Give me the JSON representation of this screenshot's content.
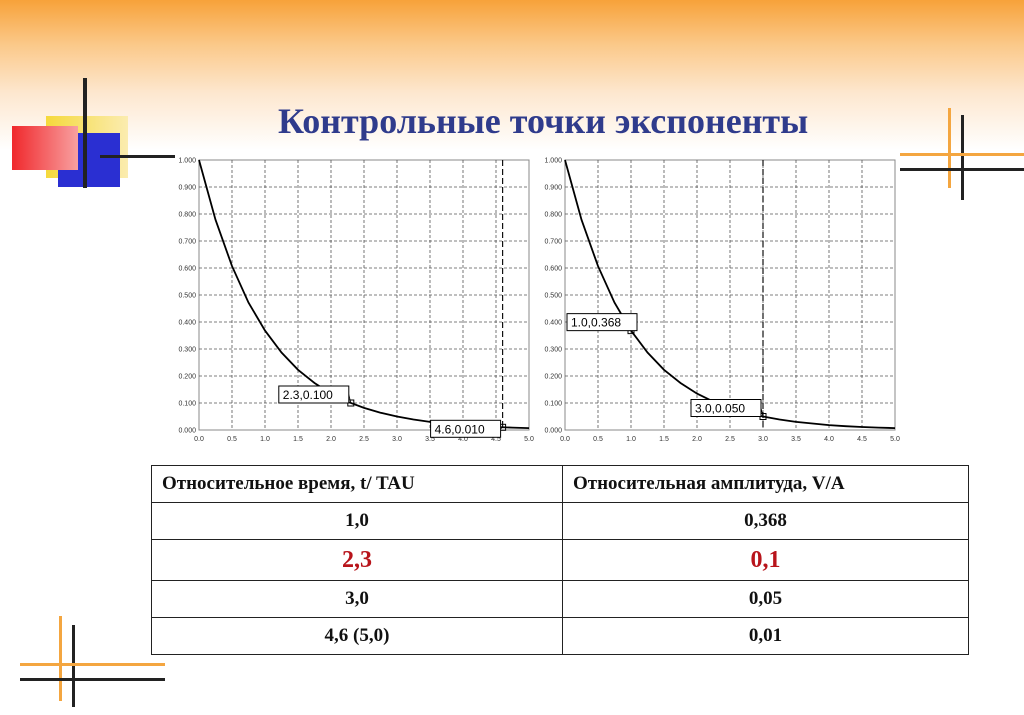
{
  "slide": {
    "title": "Контрольные точки экспоненты",
    "colors": {
      "banner": "#f7a23a",
      "title": "#2f3b8c",
      "highlight": "#b8141b",
      "deco_red": "#f0282c",
      "deco_blue": "#2a2fd2",
      "deco_yellow": "#f5d93c",
      "deco_line": "#222222",
      "deco_orange": "#f4a640"
    }
  },
  "chart_data": [
    {
      "type": "line",
      "title": "",
      "xlabel": "",
      "ylabel": "",
      "xlim": [
        0,
        5
      ],
      "ylim": [
        0,
        1
      ],
      "grid": true,
      "x_ticks": [
        "0.0",
        "0.5",
        "1.0",
        "1.5",
        "2.0",
        "2.5",
        "3.0",
        "3.5",
        "4.0",
        "4.5",
        "5.0"
      ],
      "y_ticks": [
        "0.000",
        "0.100",
        "0.200",
        "0.300",
        "0.400",
        "0.500",
        "0.600",
        "0.700",
        "0.800",
        "0.900",
        "1.000"
      ],
      "series": [
        {
          "x": [
            0,
            0.25,
            0.5,
            0.75,
            1,
            1.25,
            1.5,
            1.75,
            2,
            2.25,
            2.5,
            2.75,
            3,
            3.25,
            3.5,
            3.75,
            4,
            4.25,
            4.5,
            4.75,
            5
          ],
          "values": [
            1,
            0.779,
            0.607,
            0.472,
            0.368,
            0.287,
            0.223,
            0.174,
            0.135,
            0.105,
            0.082,
            0.064,
            0.05,
            0.039,
            0.03,
            0.024,
            0.018,
            0.014,
            0.011,
            0.009,
            0.007
          ]
        }
      ],
      "cursor_x": 4.6,
      "annotations": [
        {
          "label": "2.3,0.100",
          "x": 2.3,
          "y": 0.1
        },
        {
          "label": "4.6,0.010",
          "x": 4.6,
          "y": 0.01
        }
      ]
    },
    {
      "type": "line",
      "title": "",
      "xlabel": "",
      "ylabel": "",
      "xlim": [
        0,
        5
      ],
      "ylim": [
        0,
        1
      ],
      "grid": true,
      "x_ticks": [
        "0.0",
        "0.5",
        "1.0",
        "1.5",
        "2.0",
        "2.5",
        "3.0",
        "3.5",
        "4.0",
        "4.5",
        "5.0"
      ],
      "y_ticks": [
        "0.000",
        "0.100",
        "0.200",
        "0.300",
        "0.400",
        "0.500",
        "0.600",
        "0.700",
        "0.800",
        "0.900",
        "1.000"
      ],
      "series": [
        {
          "x": [
            0,
            0.25,
            0.5,
            0.75,
            1,
            1.25,
            1.5,
            1.75,
            2,
            2.25,
            2.5,
            2.75,
            3,
            3.25,
            3.5,
            3.75,
            4,
            4.25,
            4.5,
            4.75,
            5
          ],
          "values": [
            1,
            0.779,
            0.607,
            0.472,
            0.368,
            0.287,
            0.223,
            0.174,
            0.135,
            0.105,
            0.082,
            0.064,
            0.05,
            0.039,
            0.03,
            0.024,
            0.018,
            0.014,
            0.011,
            0.009,
            0.007
          ]
        }
      ],
      "cursor_x": 3.0,
      "annotations": [
        {
          "label": "1.0,0.368",
          "x": 1.0,
          "y": 0.368
        },
        {
          "label": "3.0,0.050",
          "x": 3.0,
          "y": 0.05
        }
      ]
    }
  ],
  "table": {
    "headers": [
      "Относительное время, t/ TAU",
      "Относительная амплитуда, V/A"
    ],
    "rows": [
      [
        "1,0",
        "0,368"
      ],
      [
        "2,3",
        "0,1"
      ],
      [
        "3,0",
        "0,05"
      ],
      [
        "4,6 (5,0)",
        "0,01"
      ]
    ],
    "highlight_row": 1
  }
}
